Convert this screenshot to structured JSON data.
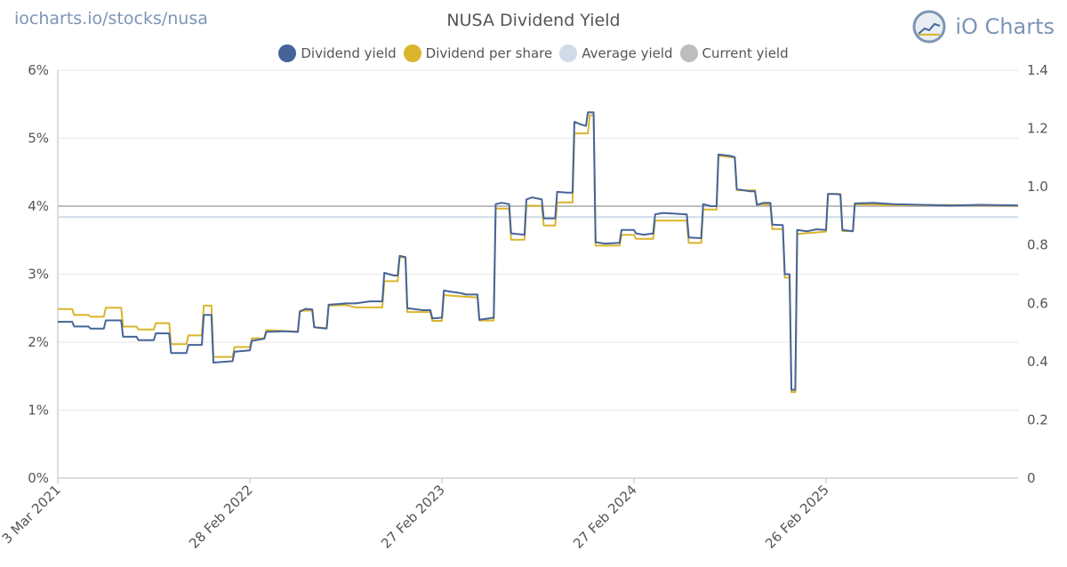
{
  "header": {
    "site_url": "iocharts.io/stocks/nusa",
    "brand": "iO Charts"
  },
  "colors": {
    "dividend_yield": "#46639a",
    "dividend_per_share": "#dab52b",
    "average_yield": "#cfdbe9",
    "current_yield": "#bdbdbd",
    "grid": "#e6e6e6"
  },
  "chart_data": {
    "type": "line",
    "title": "NUSA Dividend Yield",
    "legend": [
      {
        "name": "Dividend yield",
        "color": "#46639a"
      },
      {
        "name": "Dividend per share",
        "color": "#dab52b"
      },
      {
        "name": "Average yield",
        "color": "#cfdbe9"
      },
      {
        "name": "Current yield",
        "color": "#bdbdbd"
      }
    ],
    "legend_position": "top-center",
    "x_range": [
      0,
      1.0
    ],
    "x_ticks": [
      {
        "label": "3 Mar 2021",
        "pos": 0.0
      },
      {
        "label": "28 Feb 2022",
        "pos": 0.2
      },
      {
        "label": "27 Feb 2023",
        "pos": 0.4
      },
      {
        "label": "27 Feb 2024",
        "pos": 0.6
      },
      {
        "label": "26 Feb 2025",
        "pos": 0.8
      }
    ],
    "y_left": {
      "min": 0,
      "max": 6,
      "ticks": [
        "0%",
        "1%",
        "2%",
        "3%",
        "4%",
        "5%",
        "6%"
      ]
    },
    "y_right": {
      "min": 0,
      "max": 1.4,
      "ticks": [
        "0",
        "0.2",
        "0.4",
        "0.6",
        "0.8",
        "1.0",
        "1.2",
        "1.4"
      ]
    },
    "average_yield": 3.84,
    "current_yield": 4.0,
    "series": [
      {
        "name": "Dividend yield",
        "axis": "left",
        "step": true,
        "points": [
          [
            0.0,
            2.3
          ],
          [
            0.015,
            2.3
          ],
          [
            0.017,
            2.23
          ],
          [
            0.032,
            2.23
          ],
          [
            0.034,
            2.2
          ],
          [
            0.048,
            2.2
          ],
          [
            0.05,
            2.32
          ],
          [
            0.066,
            2.32
          ],
          [
            0.068,
            2.08
          ],
          [
            0.082,
            2.08
          ],
          [
            0.084,
            2.03
          ],
          [
            0.1,
            2.03
          ],
          [
            0.102,
            2.13
          ],
          [
            0.116,
            2.13
          ],
          [
            0.118,
            1.84
          ],
          [
            0.134,
            1.84
          ],
          [
            0.136,
            1.96
          ],
          [
            0.15,
            1.96
          ],
          [
            0.152,
            2.4
          ],
          [
            0.16,
            2.4
          ],
          [
            0.162,
            1.7
          ],
          [
            0.182,
            1.72
          ],
          [
            0.184,
            1.86
          ],
          [
            0.2,
            1.88
          ],
          [
            0.202,
            2.02
          ],
          [
            0.215,
            2.05
          ],
          [
            0.217,
            2.15
          ],
          [
            0.235,
            2.16
          ],
          [
            0.25,
            2.15
          ],
          [
            0.252,
            2.45
          ],
          [
            0.258,
            2.49
          ],
          [
            0.265,
            2.48
          ],
          [
            0.267,
            2.22
          ],
          [
            0.28,
            2.2
          ],
          [
            0.282,
            2.55
          ],
          [
            0.3,
            2.57
          ],
          [
            0.31,
            2.57
          ],
          [
            0.325,
            2.6
          ],
          [
            0.338,
            2.6
          ],
          [
            0.34,
            3.02
          ],
          [
            0.35,
            2.98
          ],
          [
            0.354,
            2.98
          ],
          [
            0.356,
            3.27
          ],
          [
            0.362,
            3.25
          ],
          [
            0.364,
            2.5
          ],
          [
            0.38,
            2.47
          ],
          [
            0.388,
            2.47
          ],
          [
            0.39,
            2.35
          ],
          [
            0.4,
            2.36
          ],
          [
            0.402,
            2.76
          ],
          [
            0.41,
            2.74
          ],
          [
            0.42,
            2.72
          ],
          [
            0.425,
            2.7
          ],
          [
            0.437,
            2.7
          ],
          [
            0.439,
            2.33
          ],
          [
            0.454,
            2.36
          ],
          [
            0.456,
            4.03
          ],
          [
            0.462,
            4.05
          ],
          [
            0.47,
            4.03
          ],
          [
            0.472,
            3.6
          ],
          [
            0.486,
            3.58
          ],
          [
            0.488,
            4.1
          ],
          [
            0.494,
            4.13
          ],
          [
            0.504,
            4.1
          ],
          [
            0.506,
            3.82
          ],
          [
            0.518,
            3.82
          ],
          [
            0.52,
            4.21
          ],
          [
            0.53,
            4.2
          ],
          [
            0.536,
            4.2
          ],
          [
            0.538,
            5.24
          ],
          [
            0.545,
            5.2
          ],
          [
            0.55,
            5.18
          ],
          [
            0.552,
            5.38
          ],
          [
            0.558,
            5.38
          ],
          [
            0.56,
            3.47
          ],
          [
            0.57,
            3.45
          ],
          [
            0.585,
            3.46
          ],
          [
            0.587,
            3.65
          ],
          [
            0.6,
            3.65
          ],
          [
            0.602,
            3.6
          ],
          [
            0.61,
            3.58
          ],
          [
            0.62,
            3.6
          ],
          [
            0.622,
            3.88
          ],
          [
            0.63,
            3.9
          ],
          [
            0.655,
            3.88
          ],
          [
            0.657,
            3.54
          ],
          [
            0.67,
            3.53
          ],
          [
            0.672,
            4.03
          ],
          [
            0.68,
            4.0
          ],
          [
            0.686,
            4.0
          ],
          [
            0.688,
            4.76
          ],
          [
            0.7,
            4.74
          ],
          [
            0.705,
            4.72
          ],
          [
            0.707,
            4.25
          ],
          [
            0.72,
            4.22
          ],
          [
            0.726,
            4.22
          ],
          [
            0.728,
            4.02
          ],
          [
            0.735,
            4.05
          ],
          [
            0.742,
            4.05
          ],
          [
            0.744,
            3.73
          ],
          [
            0.755,
            3.72
          ],
          [
            0.757,
            3.0
          ],
          [
            0.762,
            3.0
          ],
          [
            0.764,
            1.3
          ],
          [
            0.768,
            1.3
          ],
          [
            0.77,
            3.65
          ],
          [
            0.78,
            3.63
          ],
          [
            0.79,
            3.66
          ],
          [
            0.8,
            3.65
          ],
          [
            0.802,
            4.18
          ],
          [
            0.81,
            4.18
          ],
          [
            0.815,
            4.17
          ],
          [
            0.817,
            3.65
          ],
          [
            0.828,
            3.63
          ],
          [
            0.83,
            4.04
          ],
          [
            0.85,
            4.05
          ],
          [
            0.87,
            4.03
          ],
          [
            0.9,
            4.02
          ],
          [
            0.93,
            4.01
          ],
          [
            0.96,
            4.02
          ],
          [
            1.0,
            4.01
          ]
        ]
      },
      {
        "name": "Dividend per share",
        "axis": "right",
        "step": true,
        "points": [
          [
            0.0,
            0.58
          ],
          [
            0.015,
            0.58
          ],
          [
            0.017,
            0.56
          ],
          [
            0.032,
            0.56
          ],
          [
            0.034,
            0.554
          ],
          [
            0.048,
            0.554
          ],
          [
            0.05,
            0.585
          ],
          [
            0.066,
            0.585
          ],
          [
            0.068,
            0.52
          ],
          [
            0.082,
            0.52
          ],
          [
            0.084,
            0.51
          ],
          [
            0.1,
            0.51
          ],
          [
            0.102,
            0.532
          ],
          [
            0.116,
            0.532
          ],
          [
            0.118,
            0.46
          ],
          [
            0.134,
            0.46
          ],
          [
            0.136,
            0.49
          ],
          [
            0.15,
            0.49
          ],
          [
            0.152,
            0.592
          ],
          [
            0.16,
            0.592
          ],
          [
            0.162,
            0.416
          ],
          [
            0.182,
            0.416
          ],
          [
            0.184,
            0.45
          ],
          [
            0.2,
            0.45
          ],
          [
            0.202,
            0.48
          ],
          [
            0.215,
            0.48
          ],
          [
            0.217,
            0.508
          ],
          [
            0.235,
            0.505
          ],
          [
            0.25,
            0.503
          ],
          [
            0.252,
            0.574
          ],
          [
            0.258,
            0.575
          ],
          [
            0.265,
            0.575
          ],
          [
            0.267,
            0.518
          ],
          [
            0.28,
            0.515
          ],
          [
            0.282,
            0.592
          ],
          [
            0.3,
            0.594
          ],
          [
            0.31,
            0.586
          ],
          [
            0.338,
            0.586
          ],
          [
            0.34,
            0.676
          ],
          [
            0.354,
            0.676
          ],
          [
            0.356,
            0.758
          ],
          [
            0.362,
            0.758
          ],
          [
            0.364,
            0.57
          ],
          [
            0.388,
            0.57
          ],
          [
            0.39,
            0.54
          ],
          [
            0.4,
            0.54
          ],
          [
            0.402,
            0.628
          ],
          [
            0.437,
            0.62
          ],
          [
            0.439,
            0.541
          ],
          [
            0.454,
            0.541
          ],
          [
            0.456,
            0.925
          ],
          [
            0.47,
            0.925
          ],
          [
            0.472,
            0.818
          ],
          [
            0.486,
            0.818
          ],
          [
            0.488,
            0.935
          ],
          [
            0.504,
            0.935
          ],
          [
            0.506,
            0.867
          ],
          [
            0.518,
            0.867
          ],
          [
            0.52,
            0.946
          ],
          [
            0.536,
            0.946
          ],
          [
            0.538,
            1.183
          ],
          [
            0.552,
            1.183
          ],
          [
            0.554,
            1.246
          ],
          [
            0.558,
            1.246
          ],
          [
            0.56,
            0.798
          ],
          [
            0.585,
            0.798
          ],
          [
            0.587,
            0.835
          ],
          [
            0.6,
            0.835
          ],
          [
            0.602,
            0.821
          ],
          [
            0.62,
            0.821
          ],
          [
            0.622,
            0.884
          ],
          [
            0.655,
            0.884
          ],
          [
            0.657,
            0.807
          ],
          [
            0.67,
            0.807
          ],
          [
            0.672,
            0.922
          ],
          [
            0.686,
            0.922
          ],
          [
            0.688,
            1.107
          ],
          [
            0.705,
            1.1
          ],
          [
            0.707,
            0.988
          ],
          [
            0.726,
            0.988
          ],
          [
            0.728,
            0.939
          ],
          [
            0.742,
            0.939
          ],
          [
            0.744,
            0.855
          ],
          [
            0.755,
            0.855
          ],
          [
            0.757,
            0.688
          ],
          [
            0.762,
            0.688
          ],
          [
            0.764,
            0.295
          ],
          [
            0.768,
            0.295
          ],
          [
            0.77,
            0.838
          ],
          [
            0.8,
            0.846
          ],
          [
            0.802,
            0.975
          ],
          [
            0.815,
            0.975
          ],
          [
            0.817,
            0.848
          ],
          [
            0.828,
            0.848
          ],
          [
            0.83,
            0.94
          ],
          [
            0.87,
            0.937
          ],
          [
            0.93,
            0.937
          ],
          [
            1.0,
            0.935
          ]
        ]
      }
    ]
  }
}
